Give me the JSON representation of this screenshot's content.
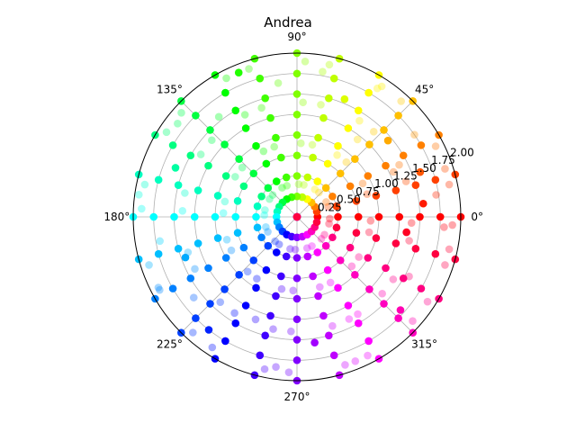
{
  "chart_data": {
    "type": "scatter",
    "projection": "polar",
    "title": "Andrea",
    "rlim": [
      0,
      2.0
    ],
    "r_ticks": [
      0.25,
      0.5,
      0.75,
      1.0,
      1.25,
      1.5,
      1.75,
      2.0
    ],
    "r_tick_labels": [
      "0.25",
      "0.50",
      "0.75",
      "1.00",
      "1.25",
      "1.50",
      "1.75",
      "2.00"
    ],
    "theta_ticks_deg": [
      0,
      45,
      90,
      135,
      180,
      225,
      270,
      315
    ],
    "theta_tick_labels": [
      "0°",
      "45°",
      "90°",
      "135°",
      "180°",
      "225°",
      "270°",
      "315°"
    ],
    "grid": true,
    "colormap": "hsv (color by angle)",
    "marker_alpha_levels": [
      1.0,
      0.35
    ],
    "angle_spokes_deg": [
      0,
      15,
      30,
      45,
      60,
      75,
      90,
      105,
      120,
      135,
      150,
      165,
      180,
      195,
      210,
      225,
      240,
      255,
      270,
      285,
      300,
      315,
      330,
      345
    ],
    "spoke_radii": [
      0.0,
      0.25,
      0.5,
      0.75,
      1.0,
      1.25,
      1.5,
      1.75,
      2.0
    ],
    "jittered_points": [
      {
        "theta_deg": 6,
        "r": 1.55
      },
      {
        "theta_deg": 9,
        "r": 1.72
      },
      {
        "theta_deg": 12,
        "r": 1.9
      },
      {
        "theta_deg": 20,
        "r": 1.6
      },
      {
        "theta_deg": 25,
        "r": 1.3
      },
      {
        "theta_deg": 35,
        "r": 1.75
      },
      {
        "theta_deg": 40,
        "r": 1.45
      },
      {
        "theta_deg": 52,
        "r": 1.2
      },
      {
        "theta_deg": 58,
        "r": 1.85
      },
      {
        "theta_deg": 68,
        "r": 1.55
      },
      {
        "theta_deg": 80,
        "r": 1.8
      },
      {
        "theta_deg": 98,
        "r": 1.65
      },
      {
        "theta_deg": 112,
        "r": 1.9
      },
      {
        "theta_deg": 128,
        "r": 1.55
      },
      {
        "theta_deg": 142,
        "r": 1.85
      },
      {
        "theta_deg": 158,
        "r": 1.6
      },
      {
        "theta_deg": 172,
        "r": 1.95
      },
      {
        "theta_deg": 190,
        "r": 1.7
      },
      {
        "theta_deg": 200,
        "r": 1.45
      },
      {
        "theta_deg": 208,
        "r": 1.9
      },
      {
        "theta_deg": 218,
        "r": 1.6
      },
      {
        "theta_deg": 232,
        "r": 1.75
      },
      {
        "theta_deg": 248,
        "r": 1.35
      },
      {
        "theta_deg": 262,
        "r": 1.85
      },
      {
        "theta_deg": 278,
        "r": 1.55
      },
      {
        "theta_deg": 292,
        "r": 1.9
      },
      {
        "theta_deg": 302,
        "r": 1.4
      },
      {
        "theta_deg": 318,
        "r": 1.7
      },
      {
        "theta_deg": 332,
        "r": 1.55
      },
      {
        "theta_deg": 342,
        "r": 1.9
      },
      {
        "theta_deg": 352,
        "r": 1.35
      },
      {
        "theta_deg": 356,
        "r": 1.8
      }
    ]
  }
}
